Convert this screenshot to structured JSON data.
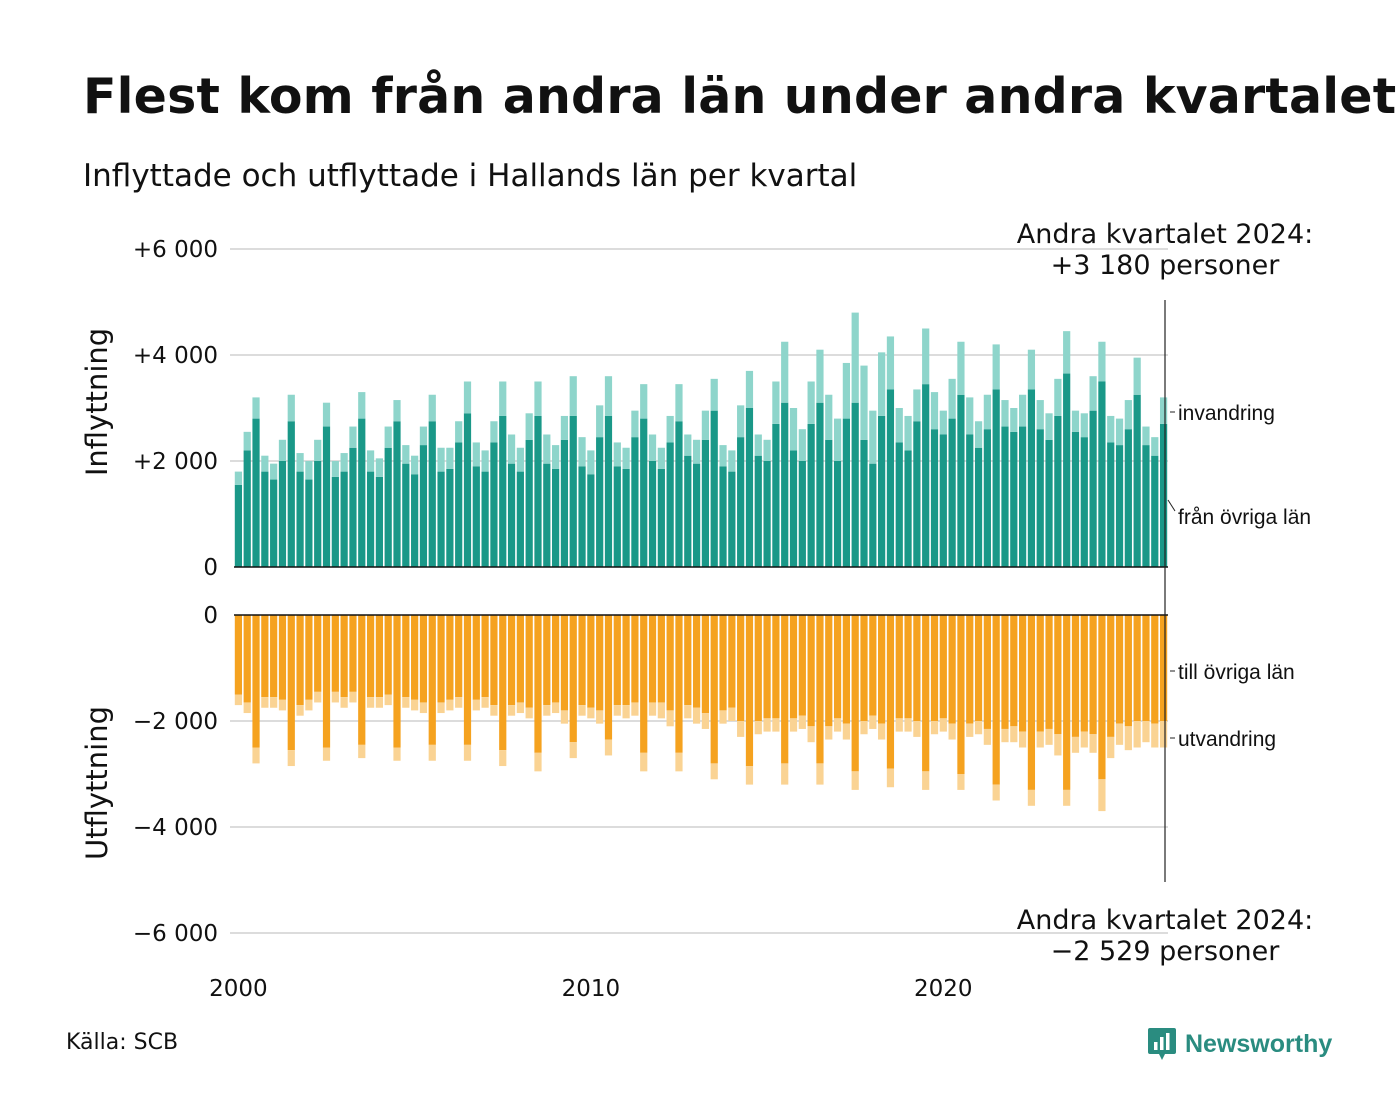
{
  "title": "Flest kom från andra län under andra kvartalet",
  "subtitle": "Inflyttade och utflyttade i Hallands län per kvartal",
  "source": "Källa: SCB",
  "brand": {
    "name": "Newsworthy",
    "color": "#2a8c80",
    "icon": "newsworthy-chart-bubble-icon"
  },
  "colors": {
    "inflow_domestic": "#1a9888",
    "inflow_immigration": "#8ed5cb",
    "outflow_domestic": "#f5a21f",
    "outflow_emigration": "#fad393"
  },
  "annotations": {
    "top_line1": "Andra kvartalet 2024:",
    "top_line2": "+3 180 personer",
    "bottom_line1": "Andra kvartalet 2024:",
    "bottom_line2": "−2 529 personer"
  },
  "chart_data": {
    "type": "bar",
    "stacked": true,
    "period": "quarterly",
    "x_ticks": [
      "2000",
      "2010",
      "2020"
    ],
    "panels": [
      {
        "name": "Inflyttning",
        "ylabel": "Inflyttning",
        "ylim": [
          0,
          6000
        ],
        "y_ticks": [
          0,
          2000,
          4000,
          6000
        ],
        "y_tick_labels": [
          "0",
          "+2 000",
          "+4 000",
          "+6 000"
        ],
        "series": [
          {
            "name": "från övriga län",
            "values": [
              1550,
              2200,
              2800,
              1800,
              1650,
              2000,
              2750,
              1800,
              1650,
              2000,
              2650,
              1700,
              1800,
              2250,
              2800,
              1800,
              1700,
              2250,
              2750,
              1950,
              1750,
              2300,
              2750,
              1800,
              1850,
              2350,
              2900,
              1900,
              1800,
              2350,
              2850,
              1950,
              1800,
              2400,
              2850,
              1950,
              1850,
              2400,
              2850,
              1900,
              1750,
              2450,
              2850,
              1900,
              1850,
              2450,
              2800,
              2000,
              1850,
              2350,
              2750,
              2100,
              1950,
              2400,
              2950,
              1900,
              1800,
              2450,
              3000,
              2100,
              2000,
              2700,
              3100,
              2200,
              2000,
              2700,
              3100,
              2400,
              2000,
              2800,
              3100,
              2400,
              1950,
              2850,
              3350,
              2350,
              2200,
              2750,
              3450,
              2600,
              2500,
              2800,
              3250,
              2500,
              2250,
              2600,
              3350,
              2650,
              2550,
              2650,
              3350,
              2600,
              2400,
              2850,
              3650,
              2550,
              2450,
              2950,
              3500,
              2350,
              2300,
              2600,
              3250,
              2300,
              2100,
              2700
            ]
          },
          {
            "name": "invandring",
            "values": [
              250,
              350,
              400,
              300,
              300,
              400,
              500,
              350,
              350,
              400,
              450,
              300,
              350,
              400,
              500,
              400,
              350,
              400,
              400,
              350,
              350,
              350,
              500,
              450,
              400,
              400,
              600,
              450,
              400,
              400,
              650,
              550,
              450,
              500,
              650,
              550,
              450,
              450,
              750,
              550,
              450,
              600,
              750,
              450,
              400,
              500,
              650,
              500,
              400,
              500,
              700,
              400,
              450,
              550,
              600,
              400,
              400,
              600,
              700,
              400,
              400,
              800,
              1150,
              800,
              600,
              800,
              1000,
              850,
              800,
              1050,
              1700,
              1400,
              1000,
              1200,
              1000,
              650,
              650,
              600,
              1050,
              700,
              450,
              750,
              1000,
              700,
              500,
              650,
              850,
              500,
              450,
              600,
              750,
              550,
              500,
              700,
              800,
              400,
              450,
              650,
              750,
              500,
              500,
              550,
              700,
              350,
              350,
              500
            ]
          }
        ]
      },
      {
        "name": "Utflyttning",
        "ylabel": "Utflyttning",
        "ylim": [
          -6000,
          0
        ],
        "y_ticks": [
          0,
          -2000,
          -4000,
          -6000
        ],
        "y_tick_labels": [
          "0",
          "−2 000",
          "−4 000",
          "−6 000"
        ],
        "series": [
          {
            "name": "till övriga län",
            "values": [
              -1500,
              -1650,
              -2500,
              -1550,
              -1550,
              -1600,
              -2550,
              -1700,
              -1600,
              -1450,
              -2500,
              -1450,
              -1550,
              -1450,
              -2450,
              -1550,
              -1550,
              -1500,
              -2500,
              -1550,
              -1600,
              -1650,
              -2450,
              -1650,
              -1600,
              -1550,
              -2450,
              -1600,
              -1550,
              -1700,
              -2550,
              -1700,
              -1650,
              -1750,
              -2600,
              -1700,
              -1650,
              -1800,
              -2400,
              -1700,
              -1750,
              -1800,
              -2350,
              -1700,
              -1700,
              -1650,
              -2600,
              -1650,
              -1650,
              -1800,
              -2600,
              -1700,
              -1750,
              -1850,
              -2800,
              -1800,
              -1750,
              -2000,
              -2850,
              -2000,
              -1950,
              -1950,
              -2800,
              -1950,
              -1900,
              -2100,
              -2800,
              -2100,
              -1950,
              -2050,
              -2950,
              -2000,
              -1900,
              -2050,
              -2900,
              -1950,
              -1950,
              -2000,
              -2950,
              -2000,
              -1950,
              -2050,
              -3000,
              -2050,
              -2000,
              -2150,
              -3200,
              -2150,
              -2100,
              -2200,
              -3300,
              -2200,
              -2150,
              -2250,
              -3300,
              -2300,
              -2200,
              -2250,
              -3100,
              -2300,
              -2050,
              -2100,
              -2000,
              -2000,
              -2050,
              -2000
            ]
          },
          {
            "name": "utvandring",
            "values": [
              -200,
              -200,
              -300,
              -200,
              -200,
              -200,
              -300,
              -200,
              -200,
              -200,
              -250,
              -200,
              -200,
              -200,
              -250,
              -200,
              -200,
              -200,
              -250,
              -200,
              -200,
              -200,
              -300,
              -200,
              -200,
              -200,
              -300,
              -200,
              -200,
              -200,
              -300,
              -200,
              -200,
              -200,
              -350,
              -200,
              -200,
              -250,
              -300,
              -200,
              -200,
              -250,
              -300,
              -200,
              -250,
              -250,
              -350,
              -250,
              -300,
              -300,
              -350,
              -250,
              -300,
              -300,
              -300,
              -250,
              -250,
              -300,
              -350,
              -250,
              -250,
              -250,
              -400,
              -250,
              -250,
              -300,
              -400,
              -250,
              -250,
              -300,
              -350,
              -250,
              -250,
              -300,
              -350,
              -250,
              -250,
              -300,
              -350,
              -250,
              -250,
              -300,
              -300,
              -250,
              -250,
              -300,
              -300,
              -250,
              -300,
              -300,
              -300,
              -300,
              -300,
              -400,
              -300,
              -300,
              -300,
              -350,
              -600,
              -400,
              -400,
              -450,
              -500,
              -400,
              -450,
              -500
            ]
          }
        ]
      }
    ]
  }
}
